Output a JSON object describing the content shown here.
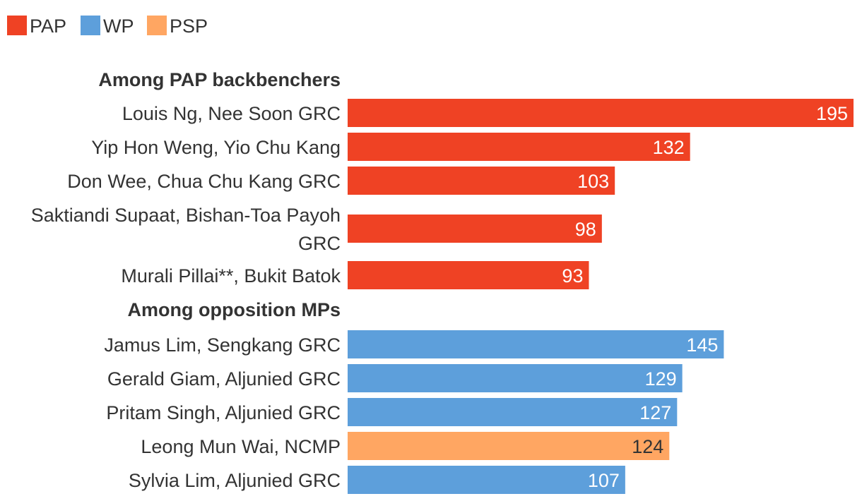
{
  "chart_data": {
    "type": "bar",
    "orientation": "horizontal",
    "legend": [
      {
        "name": "PAP",
        "color": "#ef4224"
      },
      {
        "name": "WP",
        "color": "#5d9fdb"
      },
      {
        "name": "PSP",
        "color": "#ffa662"
      }
    ],
    "xlim": [
      0,
      195
    ],
    "grid": false,
    "groups": [
      {
        "title": "Among PAP backbenchers",
        "items": [
          {
            "label": "Louis Ng, Nee Soon GRC",
            "value": 195,
            "party": "PAP"
          },
          {
            "label": "Yip Hon Weng, Yio Chu Kang",
            "value": 132,
            "party": "PAP"
          },
          {
            "label": "Don Wee, Chua Chu Kang GRC",
            "value": 103,
            "party": "PAP"
          },
          {
            "label": "Saktiandi Supaat, Bishan-Toa Payoh GRC",
            "label_lines": [
              "Saktiandi Supaat, Bishan-Toa Payoh",
              "GRC"
            ],
            "value": 98,
            "party": "PAP"
          },
          {
            "label": "Murali Pillai**, Bukit Batok",
            "value": 93,
            "party": "PAP"
          }
        ]
      },
      {
        "title": "Among opposition MPs",
        "items": [
          {
            "label": "Jamus Lim, Sengkang GRC",
            "value": 145,
            "party": "WP"
          },
          {
            "label": "Gerald Giam, Aljunied GRC",
            "value": 129,
            "party": "WP"
          },
          {
            "label": "Pritam Singh, Aljunied GRC",
            "value": 127,
            "party": "WP"
          },
          {
            "label": "Leong Mun Wai, NCMP",
            "value": 124,
            "party": "PSP"
          },
          {
            "label": "Sylvia Lim, Aljunied GRC",
            "value": 107,
            "party": "WP"
          }
        ]
      }
    ]
  }
}
